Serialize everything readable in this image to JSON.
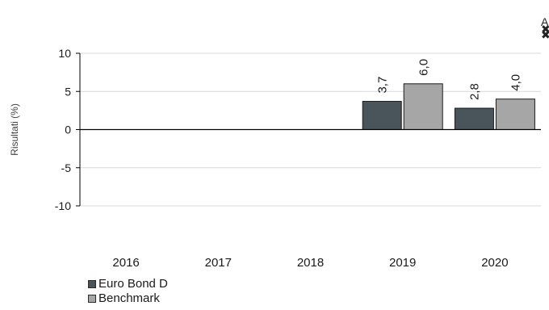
{
  "chart_data": {
    "type": "bar",
    "categories": [
      "2016",
      "2017",
      "2018",
      "2019",
      "2020"
    ],
    "series": [
      {
        "name": "Euro Bond D",
        "values": [
          null,
          null,
          null,
          3.7,
          2.8
        ],
        "labels": [
          "",
          "",
          "",
          "3,7",
          "2,8"
        ],
        "color": "#4a555b"
      },
      {
        "name": "Benchmark",
        "values": [
          null,
          null,
          null,
          6.0,
          4.0
        ],
        "labels": [
          "",
          "",
          "",
          "6,0",
          "4,0"
        ],
        "color": "#a6a6a6"
      }
    ],
    "ylabel": "Risultati (%)",
    "ylim": [
      -10,
      10
    ],
    "yticks": [
      10,
      5,
      0,
      -5,
      -10
    ],
    "ytick_labels": [
      "10",
      "5",
      "0",
      "-5",
      "-10"
    ],
    "grid": true,
    "legend": "bottom-left"
  },
  "corner_marks": [
    "A",
    "✖",
    "✖"
  ]
}
